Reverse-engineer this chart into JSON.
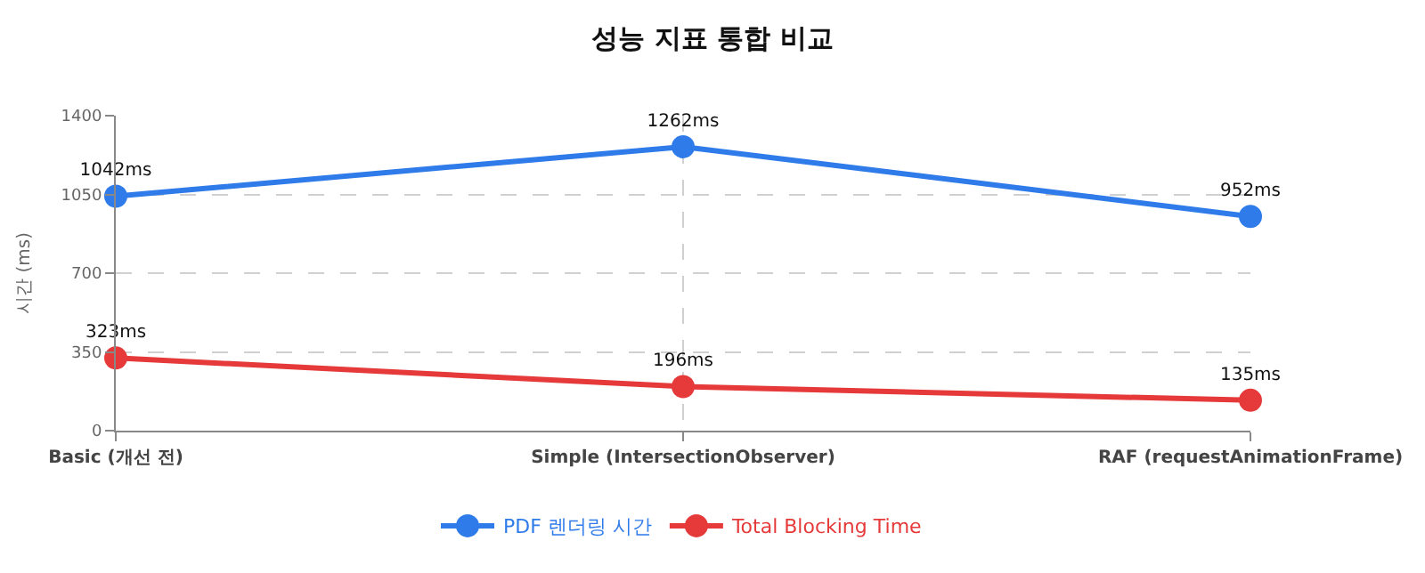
{
  "chart_data": {
    "type": "line",
    "title": "성능 지표 통합 비교",
    "ylabel": "시간 (ms)",
    "categories": [
      "Basic (개선 전)",
      "Simple (IntersectionObserver)",
      "RAF (requestAnimationFrame)"
    ],
    "series": [
      {
        "name": "PDF 렌더링 시간",
        "color": "#2f7bea",
        "values": [
          1042,
          1262,
          952
        ],
        "value_labels": [
          "1042ms",
          "1262ms",
          "952ms"
        ]
      },
      {
        "name": "Total Blocking Time",
        "color": "#e63a3a",
        "values": [
          323,
          196,
          135
        ],
        "value_labels": [
          "323ms",
          "196ms",
          "135ms"
        ]
      }
    ],
    "ylim": [
      0,
      1400
    ],
    "yticks": [
      0,
      350,
      700,
      1050,
      1400
    ],
    "grid": true,
    "legend": "bottom",
    "marker": "circle",
    "line_style": "solid"
  }
}
